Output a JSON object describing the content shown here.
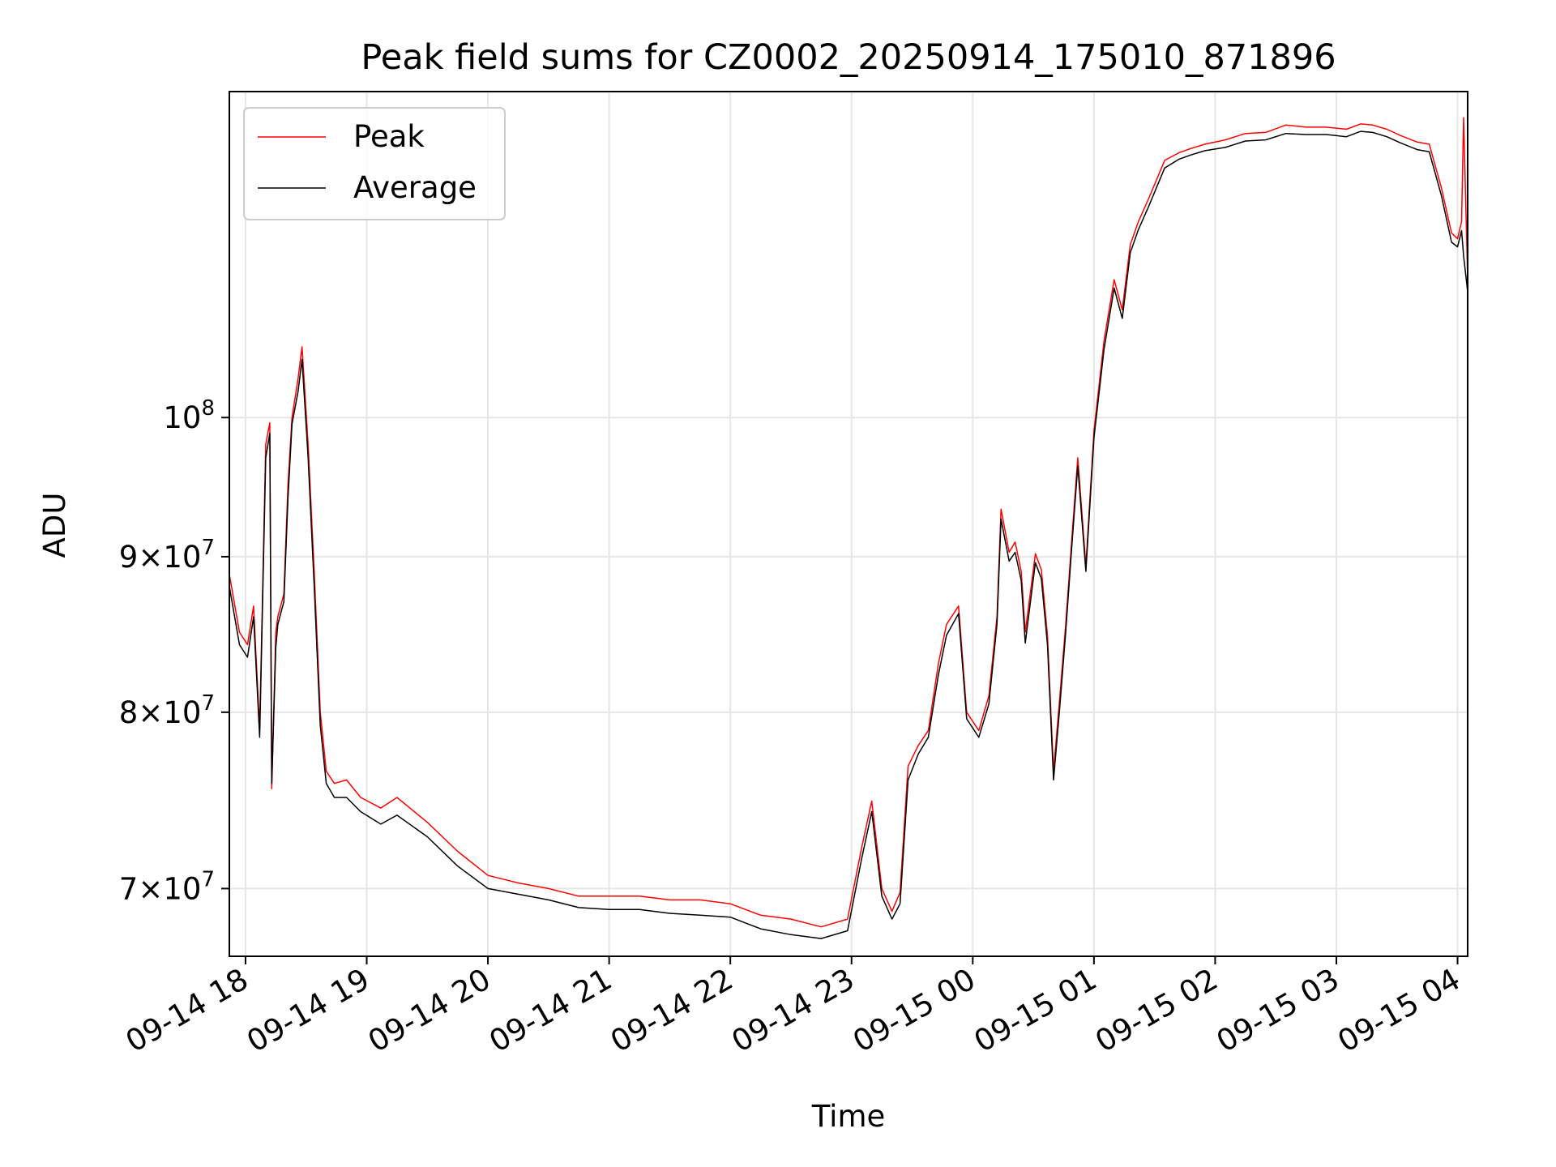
{
  "chart_data": {
    "type": "line",
    "title": "Peak field sums for CZ0002_20250914_175010_871896",
    "xlabel": "Time",
    "ylabel": "ADU",
    "xlim": [
      "2025-09-14 17:52",
      "2025-09-15 04:05"
    ],
    "ylim": [
      66500000,
      128000000
    ],
    "yscale": "log",
    "grid": true,
    "legend_position": "top-left",
    "colors": {
      "peak": "#ff0000",
      "average": "#000000"
    },
    "x_ticks": [
      {
        "t": "2025-09-14 18:00",
        "label": "09-14 18"
      },
      {
        "t": "2025-09-14 19:00",
        "label": "09-14 19"
      },
      {
        "t": "2025-09-14 20:00",
        "label": "09-14 20"
      },
      {
        "t": "2025-09-14 21:00",
        "label": "09-14 21"
      },
      {
        "t": "2025-09-14 22:00",
        "label": "09-14 22"
      },
      {
        "t": "2025-09-14 23:00",
        "label": "09-14 23"
      },
      {
        "t": "2025-09-15 00:00",
        "label": "09-15 00"
      },
      {
        "t": "2025-09-15 01:00",
        "label": "09-15 01"
      },
      {
        "t": "2025-09-15 02:00",
        "label": "09-15 02"
      },
      {
        "t": "2025-09-15 03:00",
        "label": "09-15 03"
      },
      {
        "t": "2025-09-15 04:00",
        "label": "09-15 04"
      }
    ],
    "y_ticks": [
      {
        "value": 70000000,
        "mantissa": "7",
        "exponent": "7"
      },
      {
        "value": 80000000,
        "mantissa": "8",
        "exponent": "7"
      },
      {
        "value": 90000000,
        "mantissa": "9",
        "exponent": "7"
      },
      {
        "value": 100000000,
        "mantissa": "",
        "exponent": "8"
      }
    ],
    "series": [
      {
        "name": "Peak",
        "color": "#ff0000",
        "x": [
          "2025-09-14 17:52",
          "2025-09-14 17:57",
          "2025-09-14 18:01",
          "2025-09-14 18:04",
          "2025-09-14 18:07",
          "2025-09-14 18:10",
          "2025-09-14 18:12",
          "2025-09-14 18:13",
          "2025-09-14 18:15",
          "2025-09-14 18:16",
          "2025-09-14 18:19",
          "2025-09-14 18:21",
          "2025-09-14 18:23",
          "2025-09-14 18:26",
          "2025-09-14 18:28",
          "2025-09-14 18:31",
          "2025-09-14 18:34",
          "2025-09-14 18:37",
          "2025-09-14 18:40",
          "2025-09-14 18:44",
          "2025-09-14 18:50",
          "2025-09-14 18:57",
          "2025-09-14 19:07",
          "2025-09-14 19:15",
          "2025-09-14 19:30",
          "2025-09-14 19:45",
          "2025-09-14 20:00",
          "2025-09-14 20:15",
          "2025-09-14 20:30",
          "2025-09-14 20:45",
          "2025-09-14 21:00",
          "2025-09-14 21:15",
          "2025-09-14 21:30",
          "2025-09-14 21:45",
          "2025-09-14 22:00",
          "2025-09-14 22:15",
          "2025-09-14 22:30",
          "2025-09-14 22:45",
          "2025-09-14 22:58",
          "2025-09-14 23:05",
          "2025-09-14 23:10",
          "2025-09-14 23:15",
          "2025-09-14 23:20",
          "2025-09-14 23:24",
          "2025-09-14 23:28",
          "2025-09-14 23:33",
          "2025-09-14 23:38",
          "2025-09-14 23:43",
          "2025-09-14 23:47",
          "2025-09-14 23:53",
          "2025-09-14 23:57",
          "2025-09-15 00:03",
          "2025-09-15 00:08",
          "2025-09-15 00:12",
          "2025-09-15 00:14",
          "2025-09-15 00:18",
          "2025-09-15 00:21",
          "2025-09-15 00:24",
          "2025-09-15 00:26",
          "2025-09-15 00:31",
          "2025-09-15 00:34",
          "2025-09-15 00:37",
          "2025-09-15 00:40",
          "2025-09-15 00:43",
          "2025-09-15 00:46",
          "2025-09-15 00:49",
          "2025-09-15 00:52",
          "2025-09-15 00:56",
          "2025-09-15 01:00",
          "2025-09-15 01:05",
          "2025-09-15 01:10",
          "2025-09-15 01:14",
          "2025-09-15 01:18",
          "2025-09-15 01:22",
          "2025-09-15 01:27",
          "2025-09-15 01:35",
          "2025-09-15 01:42",
          "2025-09-15 01:48",
          "2025-09-15 01:55",
          "2025-09-15 02:05",
          "2025-09-15 02:15",
          "2025-09-15 02:25",
          "2025-09-15 02:35",
          "2025-09-15 02:45",
          "2025-09-15 02:55",
          "2025-09-15 03:05",
          "2025-09-15 03:12",
          "2025-09-15 03:18",
          "2025-09-15 03:25",
          "2025-09-15 03:32",
          "2025-09-15 03:40",
          "2025-09-15 03:46",
          "2025-09-15 03:52",
          "2025-09-15 03:57",
          "2025-09-15 04:00",
          "2025-09-15 04:02",
          "2025-09-15 04:03",
          "2025-09-15 04:05"
        ],
        "y": [
          88800000,
          85000000,
          84200000,
          86700000,
          79000000,
          98000000,
          99600000,
          75500000,
          85000000,
          86000000,
          87500000,
          95000000,
          100000000,
          103000000,
          105500000,
          98000000,
          89000000,
          80000000,
          76500000,
          75800000,
          76000000,
          75000000,
          74400000,
          75000000,
          73600000,
          72000000,
          70700000,
          70300000,
          70000000,
          69600000,
          69600000,
          69600000,
          69400000,
          69400000,
          69200000,
          68600000,
          68400000,
          68000000,
          68400000,
          72200000,
          74800000,
          70000000,
          68800000,
          69800000,
          76800000,
          78000000,
          78900000,
          83000000,
          85500000,
          86700000,
          80000000,
          78900000,
          81000000,
          86000000,
          93300000,
          90300000,
          91000000,
          89000000,
          85000000,
          90200000,
          89100000,
          84800000,
          76500000,
          80800000,
          85500000,
          91100000,
          97000000,
          89400000,
          99000000,
          106000000,
          111000000,
          108500000,
          114000000,
          116000000,
          118000000,
          121500000,
          122200000,
          122600000,
          123000000,
          123400000,
          124000000,
          124100000,
          124800000,
          124600000,
          124600000,
          124400000,
          124900000,
          124800000,
          124400000,
          123800000,
          123200000,
          123000000,
          119000000,
          115000000,
          114500000,
          116000000,
          125500000,
          111000000
        ]
      },
      {
        "name": "Average",
        "color": "#000000",
        "x": [
          "2025-09-14 17:52",
          "2025-09-14 17:57",
          "2025-09-14 18:01",
          "2025-09-14 18:04",
          "2025-09-14 18:07",
          "2025-09-14 18:10",
          "2025-09-14 18:12",
          "2025-09-14 18:13",
          "2025-09-14 18:15",
          "2025-09-14 18:16",
          "2025-09-14 18:19",
          "2025-09-14 18:21",
          "2025-09-14 18:23",
          "2025-09-14 18:26",
          "2025-09-14 18:28",
          "2025-09-14 18:31",
          "2025-09-14 18:34",
          "2025-09-14 18:37",
          "2025-09-14 18:40",
          "2025-09-14 18:44",
          "2025-09-14 18:50",
          "2025-09-14 18:57",
          "2025-09-14 19:07",
          "2025-09-14 19:15",
          "2025-09-14 19:30",
          "2025-09-14 19:45",
          "2025-09-14 20:00",
          "2025-09-14 20:15",
          "2025-09-14 20:30",
          "2025-09-14 20:45",
          "2025-09-14 21:00",
          "2025-09-14 21:15",
          "2025-09-14 21:30",
          "2025-09-14 21:45",
          "2025-09-14 22:00",
          "2025-09-14 22:15",
          "2025-09-14 22:30",
          "2025-09-14 22:45",
          "2025-09-14 22:58",
          "2025-09-14 23:05",
          "2025-09-14 23:10",
          "2025-09-14 23:15",
          "2025-09-14 23:20",
          "2025-09-14 23:24",
          "2025-09-14 23:28",
          "2025-09-14 23:33",
          "2025-09-14 23:38",
          "2025-09-14 23:43",
          "2025-09-14 23:47",
          "2025-09-14 23:53",
          "2025-09-14 23:57",
          "2025-09-15 00:03",
          "2025-09-15 00:08",
          "2025-09-15 00:12",
          "2025-09-15 00:14",
          "2025-09-15 00:18",
          "2025-09-15 00:21",
          "2025-09-15 00:24",
          "2025-09-15 00:26",
          "2025-09-15 00:31",
          "2025-09-15 00:34",
          "2025-09-15 00:37",
          "2025-09-15 00:40",
          "2025-09-15 00:43",
          "2025-09-15 00:46",
          "2025-09-15 00:49",
          "2025-09-15 00:52",
          "2025-09-15 00:56",
          "2025-09-15 01:00",
          "2025-09-15 01:05",
          "2025-09-15 01:10",
          "2025-09-15 01:14",
          "2025-09-15 01:18",
          "2025-09-15 01:22",
          "2025-09-15 01:27",
          "2025-09-15 01:35",
          "2025-09-15 01:42",
          "2025-09-15 01:48",
          "2025-09-15 01:55",
          "2025-09-15 02:05",
          "2025-09-15 02:15",
          "2025-09-15 02:25",
          "2025-09-15 02:35",
          "2025-09-15 02:45",
          "2025-09-15 02:55",
          "2025-09-15 03:05",
          "2025-09-15 03:12",
          "2025-09-15 03:18",
          "2025-09-15 03:25",
          "2025-09-15 03:32",
          "2025-09-15 03:40",
          "2025-09-15 03:46",
          "2025-09-15 03:52",
          "2025-09-15 03:57",
          "2025-09-15 04:00",
          "2025-09-15 04:02",
          "2025-09-15 04:03",
          "2025-09-15 04:05"
        ],
        "y": [
          88000000,
          84200000,
          83400000,
          86000000,
          78500000,
          97000000,
          98800000,
          75800000,
          84000000,
          85500000,
          87000000,
          94000000,
          99500000,
          102000000,
          104500000,
          97000000,
          88000000,
          79200000,
          75800000,
          75000000,
          75000000,
          74200000,
          73500000,
          74000000,
          72800000,
          71200000,
          70000000,
          69700000,
          69400000,
          69000000,
          68900000,
          68900000,
          68700000,
          68600000,
          68500000,
          67900000,
          67600000,
          67400000,
          67800000,
          71600000,
          74200000,
          69600000,
          68400000,
          69200000,
          76000000,
          77500000,
          78500000,
          82300000,
          84800000,
          86200000,
          79600000,
          78500000,
          80500000,
          85500000,
          92600000,
          89700000,
          90300000,
          88400000,
          84300000,
          89600000,
          88500000,
          84200000,
          76000000,
          80200000,
          85000000,
          90600000,
          96400000,
          89000000,
          98500000,
          105300000,
          110300000,
          107800000,
          113300000,
          115300000,
          117300000,
          120800000,
          121600000,
          122000000,
          122400000,
          122700000,
          123300000,
          123400000,
          124000000,
          123900000,
          123900000,
          123700000,
          124200000,
          124100000,
          123700000,
          123100000,
          122500000,
          122300000,
          118300000,
          114200000,
          113800000,
          115200000,
          113000000,
          110000000
        ]
      }
    ]
  }
}
